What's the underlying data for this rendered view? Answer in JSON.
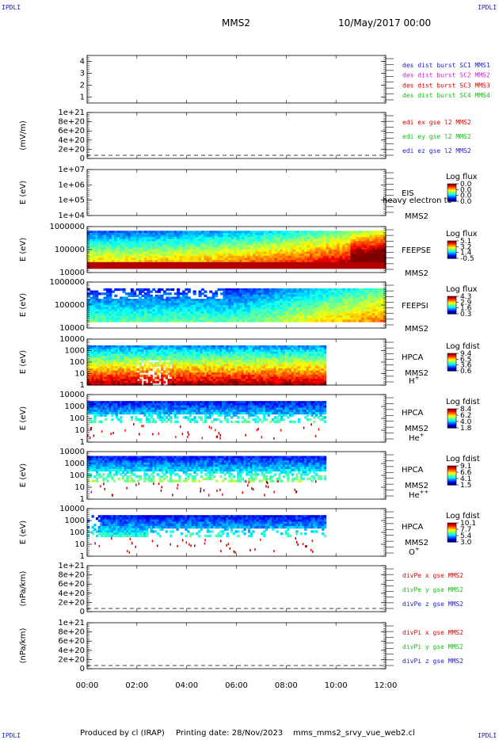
{
  "header": {
    "corner_label": "IPDLI",
    "spacecraft": "MMS2",
    "date": "10/May/2017 00:00"
  },
  "footer": {
    "produced": "Produced by cl (IRAP)",
    "printing": "Printing date: 28/Nov/2023",
    "script": "mms_mms2_srvy_vue_web2.cl"
  },
  "time_axis": {
    "ticks": [
      "00:00",
      "02:00",
      "04:00",
      "06:00",
      "08:00",
      "10:00",
      "12:00"
    ]
  },
  "chart_data": [
    {
      "type": "line",
      "id": "des_dist",
      "ylabel": "",
      "ylim": [
        0.5,
        4.5
      ],
      "yticks": [
        "1",
        "2",
        "3",
        "4"
      ],
      "legend": [
        {
          "text": "des dist burst SC1 MMS1",
          "color": "#2020d0"
        },
        {
          "text": "des dist burst SC2 MMS2",
          "color": "#d020d0"
        },
        {
          "text": "des dist burst SC3 MMS3",
          "color": "#e00000"
        },
        {
          "text": "des dist burst SC4 MMS4",
          "color": "#10c010"
        }
      ],
      "series": []
    },
    {
      "type": "line",
      "id": "edi",
      "ylabel": "(mV/m)",
      "yticks": [
        "0",
        "2e+20",
        "4e+20",
        "6e+20",
        "8e+20",
        "1e+21"
      ],
      "zero_line": true,
      "legend": [
        {
          "text": "edi ex gse l2 MMS2",
          "color": "#e00000"
        },
        {
          "text": "edi ey gse l2 MMS2",
          "color": "#10c010"
        },
        {
          "text": "edi ez gse l2 MMS2",
          "color": "#2020d0"
        }
      ],
      "series": []
    },
    {
      "type": "heatmap",
      "id": "eis",
      "ylabel": "E (eV)",
      "yticks": [
        "1e+04",
        "1e+05",
        "1e+06",
        "1e+07"
      ],
      "instrument": "EIS",
      "sub": "MMS2",
      "overlay": "heavy electron to",
      "cbar_title": "Log flux",
      "cbar_ticks": [
        "0.0",
        "0.0",
        "0.0",
        "0.0"
      ],
      "empty": true
    },
    {
      "type": "heatmap",
      "id": "feepse",
      "ylabel": "E (eV)",
      "yticks": [
        "10000",
        "100000",
        "1000000"
      ],
      "instrument": "FEEPSE",
      "sub": "MMS2",
      "cbar_title": "Log flux",
      "cbar_ticks": [
        "5.1",
        "3.2",
        "1.4",
        "-0.5"
      ],
      "data_end_hour": 12
    },
    {
      "type": "heatmap",
      "id": "feepsi",
      "ylabel": "E (eV)",
      "yticks": [
        "10000",
        "100000",
        "1000000"
      ],
      "instrument": "FEEPSI",
      "sub": "MMS2",
      "cbar_title": "Log flux",
      "cbar_ticks": [
        "4.3",
        "2.9",
        "1.6",
        "0.3"
      ],
      "data_end_hour": 12
    },
    {
      "type": "heatmap",
      "id": "hpca_h",
      "ylabel": "E (eV)",
      "yticks": [
        "1",
        "10",
        "100",
        "1000",
        "10000"
      ],
      "instrument": "HPCA",
      "sub": "MMS2",
      "species": "H",
      "species_sup": "+",
      "cbar_title": "Log fdist",
      "cbar_ticks": [
        "9.4",
        "6.5",
        "3.6",
        "0.6"
      ],
      "data_end_hour": 9.6
    },
    {
      "type": "heatmap",
      "id": "hpca_he",
      "ylabel": "E (eV)",
      "yticks": [
        "1",
        "10",
        "100",
        "1000",
        "10000"
      ],
      "instrument": "HPCA",
      "sub": "MMS2",
      "species": "He",
      "species_sup": "+",
      "cbar_title": "Log fdist",
      "cbar_ticks": [
        "8.4",
        "6.2",
        "4.0",
        "1.8"
      ],
      "data_end_hour": 9.6
    },
    {
      "type": "heatmap",
      "id": "hpca_hepp",
      "ylabel": "E (eV)",
      "yticks": [
        "1",
        "10",
        "100",
        "1000",
        "10000"
      ],
      "instrument": "HPCA",
      "sub": "MMS2",
      "species": "He",
      "species_sup": "++",
      "cbar_title": "Log fdist",
      "cbar_ticks": [
        "9.1",
        "6.6",
        "4.1",
        "1.5"
      ],
      "data_end_hour": 9.6
    },
    {
      "type": "heatmap",
      "id": "hpca_o",
      "ylabel": "E (eV)",
      "yticks": [
        "1",
        "10",
        "100",
        "1000",
        "10000"
      ],
      "instrument": "HPCA",
      "sub": "MMS2",
      "species": "O",
      "species_sup": "+",
      "cbar_title": "Log fdist",
      "cbar_ticks": [
        "10.1",
        "7.7",
        "5.4",
        "3.0"
      ],
      "data_end_hour": 9.6
    },
    {
      "type": "line",
      "id": "divpe",
      "ylabel": "(nPa/km)",
      "yticks": [
        "0",
        "2e+20",
        "4e+20",
        "6e+20",
        "8e+20",
        "1e+21"
      ],
      "zero_line": true,
      "legend": [
        {
          "text": "divPe x gse MMS2",
          "color": "#e00000"
        },
        {
          "text": "divPe y gse MMS2",
          "color": "#10c010"
        },
        {
          "text": "divPe z gse MMS2",
          "color": "#2020d0"
        }
      ],
      "series": []
    },
    {
      "type": "line",
      "id": "divpi",
      "ylabel": "(nPa/km)",
      "yticks": [
        "0",
        "2e+20",
        "4e+20",
        "6e+20",
        "8e+20",
        "1e+21"
      ],
      "zero_line": true,
      "legend": [
        {
          "text": "divPi x gse MMS2",
          "color": "#e00000"
        },
        {
          "text": "divPi y gse MMS2",
          "color": "#10c010"
        },
        {
          "text": "divPi z gse MMS2",
          "color": "#2020d0"
        }
      ],
      "series": []
    }
  ]
}
